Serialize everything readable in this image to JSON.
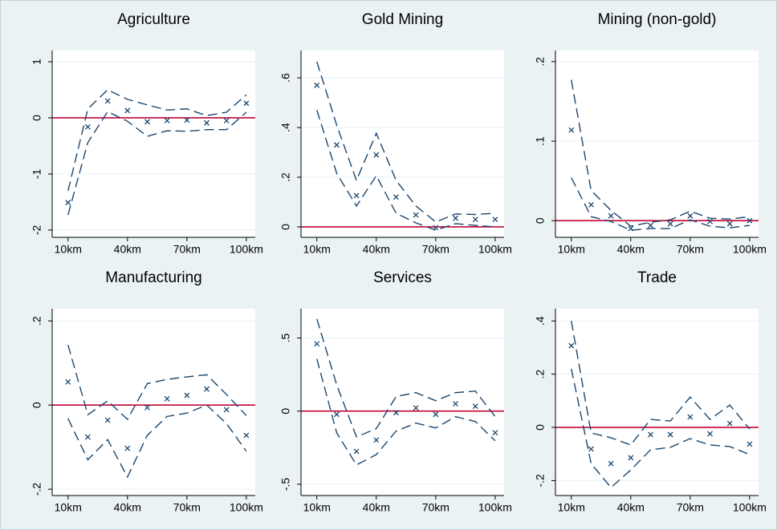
{
  "chart_data": [
    {
      "type": "line",
      "title": "Agriculture",
      "x": [
        10,
        20,
        30,
        40,
        50,
        60,
        70,
        80,
        90,
        100
      ],
      "xlim": [
        2,
        104.5
      ],
      "xticks": [
        {
          "value": 10,
          "label": "10km"
        },
        {
          "value": 40,
          "label": "40km"
        },
        {
          "value": 70,
          "label": "70km"
        },
        {
          "value": 100,
          "label": "100km"
        }
      ],
      "ylim": [
        -2.13,
        1.2
      ],
      "yticks": [
        -2,
        -1,
        0,
        1
      ],
      "grid": true,
      "hline": {
        "value": 0,
        "color": "#c10534"
      },
      "series": [
        {
          "style": "marker",
          "color": "#1a476f",
          "values": [
            -1.51,
            -0.16,
            0.3,
            0.13,
            -0.07,
            -0.05,
            -0.04,
            -0.09,
            -0.05,
            0.26
          ]
        },
        {
          "style": "dashed",
          "color": "#1a476f",
          "values": [
            -1.3,
            0.16,
            0.5,
            0.33,
            0.23,
            0.14,
            0.16,
            0.04,
            0.1,
            0.41
          ]
        },
        {
          "style": "dashed",
          "color": "#1a476f",
          "values": [
            -1.73,
            -0.44,
            0.11,
            -0.06,
            -0.33,
            -0.23,
            -0.24,
            -0.21,
            -0.21,
            0.1
          ]
        }
      ]
    },
    {
      "type": "line",
      "title": "Gold Mining",
      "x": [
        10,
        20,
        30,
        40,
        50,
        60,
        70,
        80,
        90,
        100
      ],
      "xlim": [
        2,
        104.5
      ],
      "xticks": [
        {
          "value": 10,
          "label": "10km"
        },
        {
          "value": 40,
          "label": "40km"
        },
        {
          "value": 70,
          "label": "70km"
        },
        {
          "value": 100,
          "label": "100km"
        }
      ],
      "ylim": [
        -0.042,
        0.71
      ],
      "yticks": [
        0,
        {
          "value": 0.2,
          "label": ".2"
        },
        {
          "value": 0.4,
          "label": ".4"
        },
        {
          "value": 0.6,
          "label": ".6"
        }
      ],
      "grid": true,
      "hline": {
        "value": 0,
        "color": "#c10534"
      },
      "series": [
        {
          "style": "marker",
          "color": "#1a476f",
          "values": [
            0.57,
            0.33,
            0.126,
            0.29,
            0.12,
            0.048,
            -0.003,
            0.035,
            0.03,
            0.03
          ]
        },
        {
          "style": "dashed",
          "color": "#1a476f",
          "values": [
            0.665,
            0.41,
            0.187,
            0.377,
            0.187,
            0.084,
            0.02,
            0.052,
            0.05,
            0.055
          ]
        },
        {
          "style": "dashed",
          "color": "#1a476f",
          "values": [
            0.47,
            0.216,
            0.084,
            0.206,
            0.055,
            0.016,
            -0.013,
            0.013,
            0.006,
            0
          ]
        }
      ]
    },
    {
      "type": "line",
      "title": "Mining (non-gold)",
      "x": [
        10,
        20,
        30,
        40,
        50,
        60,
        70,
        80,
        90,
        100
      ],
      "xlim": [
        2,
        104.5
      ],
      "xticks": [
        {
          "value": 10,
          "label": "10km"
        },
        {
          "value": 40,
          "label": "40km"
        },
        {
          "value": 70,
          "label": "70km"
        },
        {
          "value": 100,
          "label": "100km"
        }
      ],
      "ylim": [
        -0.021,
        0.214
      ],
      "yticks": [
        0,
        {
          "value": 0.1,
          "label": ".1"
        },
        {
          "value": 0.2,
          "label": ".2"
        }
      ],
      "grid": true,
      "hline": {
        "value": 0,
        "color": "#c10534"
      },
      "series": [
        {
          "style": "marker",
          "color": "#1a476f",
          "values": [
            0.114,
            0.02,
            0.006,
            -0.01,
            -0.006,
            -0.004,
            0.006,
            -0.001,
            -0.004,
            0
          ]
        },
        {
          "style": "dashed",
          "color": "#1a476f",
          "values": [
            0.177,
            0.038,
            0.013,
            -0.007,
            -0.002,
            0.001,
            0.012,
            0.003,
            0.002,
            0.005
          ]
        },
        {
          "style": "dashed",
          "color": "#1a476f",
          "values": [
            0.054,
            0.005,
            -0.001,
            -0.012,
            -0.01,
            -0.01,
            0.001,
            -0.007,
            -0.009,
            -0.006
          ]
        }
      ]
    },
    {
      "type": "line",
      "title": "Manufacturing",
      "x": [
        10,
        20,
        30,
        40,
        50,
        60,
        70,
        80,
        90,
        100
      ],
      "xlim": [
        2,
        104.5
      ],
      "xticks": [
        {
          "value": 10,
          "label": "10km"
        },
        {
          "value": 40,
          "label": "40km"
        },
        {
          "value": 70,
          "label": "70km"
        },
        {
          "value": 100,
          "label": "100km"
        }
      ],
      "ylim": [
        -0.215,
        0.229
      ],
      "yticks": [
        {
          "value": -0.2,
          "label": "-.2"
        },
        0,
        {
          "value": 0.2,
          "label": ".2"
        }
      ],
      "grid": true,
      "hline": {
        "value": 0,
        "color": "#c10534"
      },
      "series": [
        {
          "style": "marker",
          "color": "#1a476f",
          "values": [
            0.055,
            -0.076,
            -0.036,
            -0.103,
            -0.006,
            0.015,
            0.023,
            0.038,
            -0.011,
            -0.072
          ]
        },
        {
          "style": "dashed",
          "color": "#1a476f",
          "values": [
            0.143,
            -0.023,
            0.01,
            -0.034,
            0.051,
            0.061,
            0.067,
            0.072,
            0.025,
            -0.025
          ]
        },
        {
          "style": "dashed",
          "color": "#1a476f",
          "values": [
            -0.032,
            -0.13,
            -0.082,
            -0.171,
            -0.072,
            -0.027,
            -0.019,
            0,
            -0.044,
            -0.11
          ]
        }
      ]
    },
    {
      "type": "line",
      "title": "Services",
      "x": [
        10,
        20,
        30,
        40,
        50,
        60,
        70,
        80,
        90,
        100
      ],
      "xlim": [
        2,
        104.5
      ],
      "xticks": [
        {
          "value": 10,
          "label": "10km"
        },
        {
          "value": 40,
          "label": "40km"
        },
        {
          "value": 70,
          "label": "70km"
        },
        {
          "value": 100,
          "label": "100km"
        }
      ],
      "ylim": [
        -0.577,
        0.7
      ],
      "yticks": [
        {
          "value": -0.5,
          "label": "-.5"
        },
        0,
        {
          "value": 0.5,
          "label": ".5"
        }
      ],
      "grid": true,
      "hline": {
        "value": 0,
        "color": "#c10534"
      },
      "series": [
        {
          "style": "marker",
          "color": "#1a476f",
          "values": [
            0.46,
            -0.022,
            -0.275,
            -0.198,
            -0.011,
            0.022,
            -0.022,
            0.05,
            0.033,
            -0.148
          ]
        },
        {
          "style": "dashed",
          "color": "#1a476f",
          "values": [
            0.63,
            0.18,
            -0.176,
            -0.12,
            0.1,
            0.126,
            0.071,
            0.126,
            0.137,
            -0.038
          ]
        },
        {
          "style": "dashed",
          "color": "#1a476f",
          "values": [
            0.357,
            -0.148,
            -0.368,
            -0.297,
            -0.137,
            -0.082,
            -0.115,
            -0.038,
            -0.071,
            -0.203
          ]
        }
      ]
    },
    {
      "type": "line",
      "title": "Trade",
      "x": [
        10,
        20,
        30,
        40,
        50,
        60,
        70,
        80,
        90,
        100
      ],
      "xlim": [
        2,
        104.5
      ],
      "xticks": [
        {
          "value": 10,
          "label": "10km"
        },
        {
          "value": 40,
          "label": "40km"
        },
        {
          "value": 70,
          "label": "70km"
        },
        {
          "value": 100,
          "label": "100km"
        }
      ],
      "ylim": [
        -0.256,
        0.446
      ],
      "yticks": [
        {
          "value": -0.2,
          "label": "-.2"
        },
        0,
        {
          "value": 0.2,
          "label": ".2"
        },
        {
          "value": 0.4,
          "label": ".4"
        }
      ],
      "grid": true,
      "hline": {
        "value": 0,
        "color": "#c10534"
      },
      "series": [
        {
          "style": "marker",
          "color": "#1a476f",
          "values": [
            0.307,
            -0.081,
            -0.136,
            -0.114,
            -0.027,
            -0.027,
            0.039,
            -0.024,
            0.015,
            -0.063
          ]
        },
        {
          "style": "dashed",
          "color": "#1a476f",
          "values": [
            0.4,
            -0.021,
            -0.039,
            -0.066,
            0.03,
            0.024,
            0.114,
            0.03,
            0.084,
            -0.006
          ]
        },
        {
          "style": "dashed",
          "color": "#1a476f",
          "values": [
            0.22,
            -0.136,
            -0.226,
            -0.16,
            -0.084,
            -0.075,
            -0.042,
            -0.066,
            -0.072,
            -0.102
          ]
        }
      ]
    }
  ]
}
